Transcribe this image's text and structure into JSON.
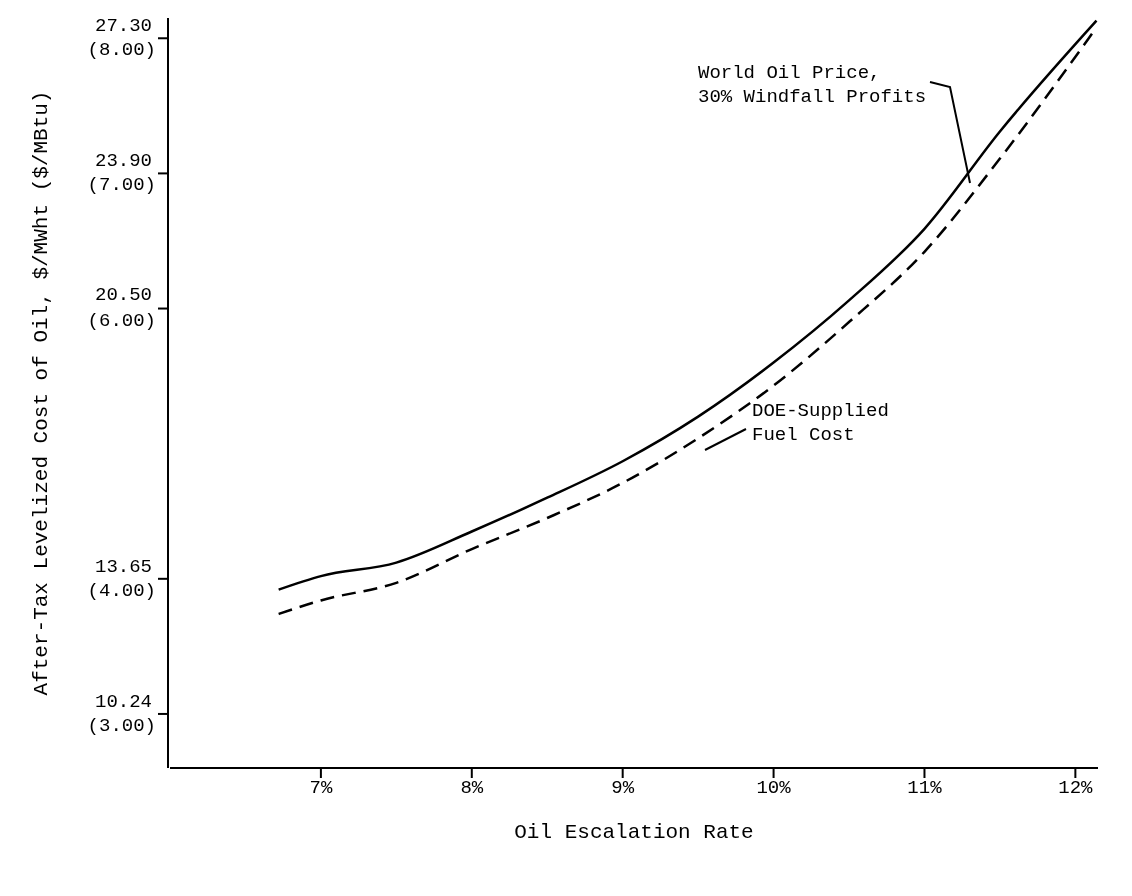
{
  "chart_data": {
    "type": "line",
    "xlabel": "Oil Escalation Rate",
    "y2label": "After-Tax Levelized Cost of Oil, $/MWht ($/MBtu)",
    "x": [
      6.72,
      7,
      7.5,
      8,
      8.5,
      9,
      9.5,
      10,
      10.5,
      11,
      11.5,
      12.14
    ],
    "series": [
      {
        "color": "#000000",
        "line_style": "solid",
        "axis": "y2",
        "values": [
          3.92,
          4.02,
          4.12,
          4.35,
          4.6,
          4.87,
          5.2,
          5.6,
          6.06,
          6.59,
          7.31,
          8.13
        ]
      },
      {
        "color": "#000000",
        "line_style": "dashed",
        "axis": "y2",
        "values": [
          3.74,
          3.84,
          3.97,
          4.22,
          4.45,
          4.71,
          5.04,
          5.43,
          5.9,
          6.42,
          7.11,
          8.08
        ]
      }
    ],
    "xlim": [
      6,
      12.15
    ],
    "ylim": [
      8.87,
      27.81
    ],
    "y2lim": [
      2.6,
      8.15
    ],
    "xticks": [
      {
        "value": 7,
        "label": "7%"
      },
      {
        "value": 8,
        "label": "8%"
      },
      {
        "value": 9,
        "label": "9%"
      },
      {
        "value": 10,
        "label": "10%"
      },
      {
        "value": 11,
        "label": "11%"
      },
      {
        "value": 12,
        "label": "12%"
      }
    ],
    "yticks": [
      10.24,
      13.65,
      {
        "value": 20.5,
        "label": "20.50"
      },
      {
        "value": 23.9,
        "label": "23.90"
      },
      {
        "value": 27.3,
        "label": "27.30"
      }
    ],
    "y2ticks": [
      {
        "value": 3,
        "label": "(3.00)"
      },
      {
        "value": 4,
        "label": "(4.00)"
      },
      {
        "value": 6,
        "label": "(6.00)"
      },
      {
        "value": 7,
        "label": "(7.00)"
      },
      {
        "value": 8,
        "label": "(8.00)"
      }
    ],
    "annotations": [
      "World Oil Price,\n30% Windfall Profits",
      "DOE-Supplied\nFuel Cost"
    ],
    "grid": false,
    "legend": false,
    "marker": "none"
  }
}
